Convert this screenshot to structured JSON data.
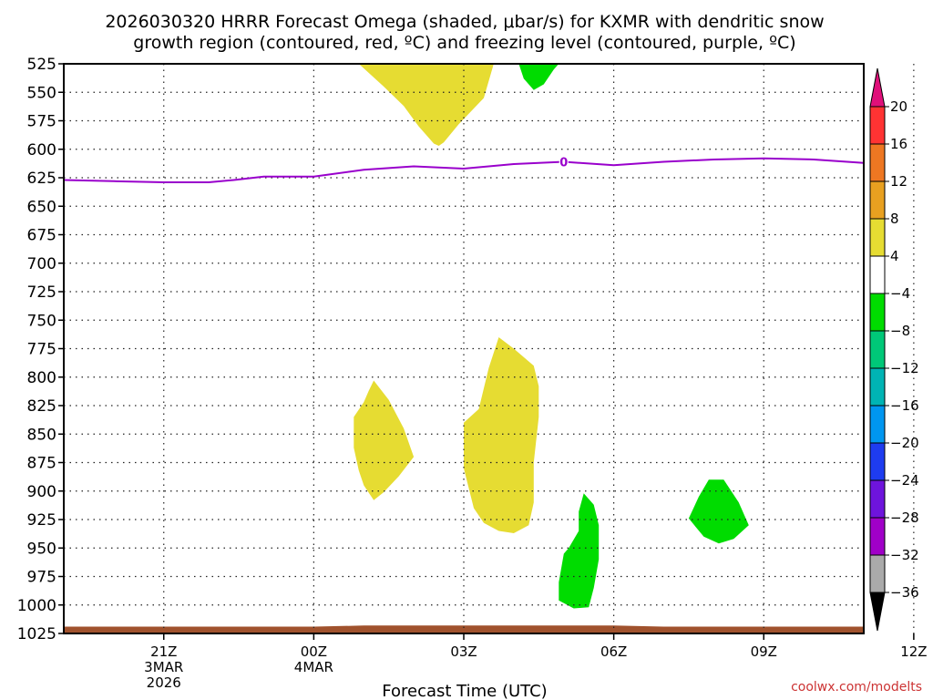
{
  "chart_data": {
    "type": "heatmap",
    "title_lines": [
      "2026030320 HRRR Forecast Omega (shaded, μbar/s) for KXMR with dendritic snow",
      "growth region (contoured, red, ºC) and freezing level (contoured, purple, ºC)"
    ],
    "xlabel": "Forecast Time (UTC)",
    "ylabel": "",
    "x_hours": [
      -2,
      14
    ],
    "x_ticks": [
      {
        "hour": 0,
        "label": "21Z",
        "sub": [
          "3MAR",
          "2026"
        ]
      },
      {
        "hour": 3,
        "label": "00Z",
        "sub": [
          "4MAR"
        ]
      },
      {
        "hour": 6,
        "label": "03Z",
        "sub": []
      },
      {
        "hour": 9,
        "label": "06Z",
        "sub": []
      },
      {
        "hour": 12,
        "label": "09Z",
        "sub": []
      },
      {
        "hour": 15,
        "label": "12Z",
        "sub": []
      }
    ],
    "y_range_hpa": [
      525,
      1025
    ],
    "y_ticks": [
      525,
      550,
      575,
      600,
      625,
      650,
      675,
      700,
      725,
      750,
      775,
      800,
      825,
      850,
      875,
      900,
      925,
      950,
      975,
      1000,
      1025
    ],
    "freezing_level": {
      "label": "0",
      "color": "#9900cc",
      "points": [
        [
          -2,
          627
        ],
        [
          -1,
          628
        ],
        [
          0,
          629
        ],
        [
          0.9,
          629
        ],
        [
          1.4,
          627
        ],
        [
          2,
          624
        ],
        [
          3,
          624
        ],
        [
          4,
          618
        ],
        [
          5,
          615
        ],
        [
          6,
          617
        ],
        [
          7,
          613
        ],
        [
          8,
          611
        ],
        [
          9,
          614
        ],
        [
          10,
          611
        ],
        [
          11,
          609
        ],
        [
          12,
          608
        ],
        [
          13,
          609
        ],
        [
          14,
          612
        ],
        [
          15,
          614
        ],
        [
          16,
          618
        ]
      ],
      "label_hours": [
        8,
        15
      ]
    },
    "omega_regions": [
      {
        "value_band": "4 to 8",
        "color": "#e6dc32",
        "points": [
          [
            3.9,
            525
          ],
          [
            4.4,
            545
          ],
          [
            4.8,
            562
          ],
          [
            5.1,
            580
          ],
          [
            5.4,
            595
          ],
          [
            5.5,
            597
          ],
          [
            5.6,
            594
          ],
          [
            5.9,
            578
          ],
          [
            6.4,
            555
          ],
          [
            6.6,
            525
          ]
        ]
      },
      {
        "value_band": "-8 to -4",
        "color": "#00dc00",
        "points": [
          [
            7.1,
            525
          ],
          [
            7.2,
            538
          ],
          [
            7.4,
            548
          ],
          [
            7.6,
            543
          ],
          [
            7.8,
            530
          ],
          [
            7.9,
            525
          ]
        ]
      },
      {
        "value_band": "4 to 8",
        "color": "#e6dc32",
        "points": [
          [
            3.8,
            835
          ],
          [
            3.8,
            862
          ],
          [
            3.9,
            882
          ],
          [
            4.0,
            895
          ],
          [
            4.2,
            908
          ],
          [
            4.4,
            901
          ],
          [
            4.7,
            887
          ],
          [
            5.0,
            870
          ],
          [
            4.8,
            845
          ],
          [
            4.5,
            820
          ],
          [
            4.2,
            803
          ],
          [
            4.1,
            812
          ],
          [
            4.0,
            822
          ]
        ]
      },
      {
        "value_band": "4 to 8",
        "color": "#e6dc32",
        "points": [
          [
            6.0,
            880
          ],
          [
            6.2,
            915
          ],
          [
            6.4,
            928
          ],
          [
            6.7,
            935
          ],
          [
            7.0,
            937
          ],
          [
            7.3,
            930
          ],
          [
            7.4,
            910
          ],
          [
            7.4,
            875
          ],
          [
            7.5,
            835
          ],
          [
            7.5,
            808
          ],
          [
            7.4,
            790
          ],
          [
            7.0,
            775
          ],
          [
            6.7,
            765
          ],
          [
            6.5,
            792
          ],
          [
            6.3,
            828
          ],
          [
            6.0,
            840
          ],
          [
            6.0,
            862
          ]
        ]
      },
      {
        "value_band": "-8 to -4",
        "color": "#00dc00",
        "points": [
          [
            8.0,
            955
          ],
          [
            7.9,
            980
          ],
          [
            7.9,
            996
          ],
          [
            8.2,
            1003
          ],
          [
            8.5,
            1002
          ],
          [
            8.6,
            985
          ],
          [
            8.7,
            960
          ],
          [
            8.7,
            930
          ],
          [
            8.6,
            912
          ],
          [
            8.4,
            902
          ],
          [
            8.3,
            918
          ],
          [
            8.3,
            935
          ],
          [
            8.1,
            950
          ]
        ]
      },
      {
        "value_band": "-8 to -4",
        "color": "#00dc00",
        "points": [
          [
            10.5,
            924
          ],
          [
            10.8,
            940
          ],
          [
            11.1,
            946
          ],
          [
            11.4,
            942
          ],
          [
            11.7,
            930
          ],
          [
            11.5,
            910
          ],
          [
            11.2,
            890
          ],
          [
            10.9,
            890
          ],
          [
            10.7,
            905
          ]
        ]
      },
      {
        "value_band": "4 to 8",
        "color": "#e6dc32",
        "points": [
          [
            14.8,
            970
          ],
          [
            14.9,
            984
          ],
          [
            15.1,
            990
          ],
          [
            15.3,
            984
          ],
          [
            15.6,
            967
          ],
          [
            15.3,
            960
          ],
          [
            15.0,
            962
          ]
        ]
      }
    ],
    "surface": {
      "color": "#a0522d",
      "top_hpa": [
        1019,
        1018
      ],
      "bottom_hpa": 1025
    },
    "colorbar": {
      "levels": [
        "20",
        "16",
        "12",
        "8",
        "4",
        "−4",
        "−8",
        "−12",
        "−16",
        "−20",
        "−24",
        "−28",
        "−32",
        "−36"
      ],
      "colors": [
        "#ff3333",
        "#ee7722",
        "#e8a020",
        "#e6dc32",
        "#ffffff",
        "#00dc00",
        "#00c878",
        "#00b4b4",
        "#0096f0",
        "#1e3cf0",
        "#6e14dc",
        "#a000c8",
        "#aaaaaa"
      ],
      "top_arrow_color": "#e0107a",
      "bottom_arrow_color": "#000000"
    },
    "credit": "coolwx.com/modelts"
  }
}
